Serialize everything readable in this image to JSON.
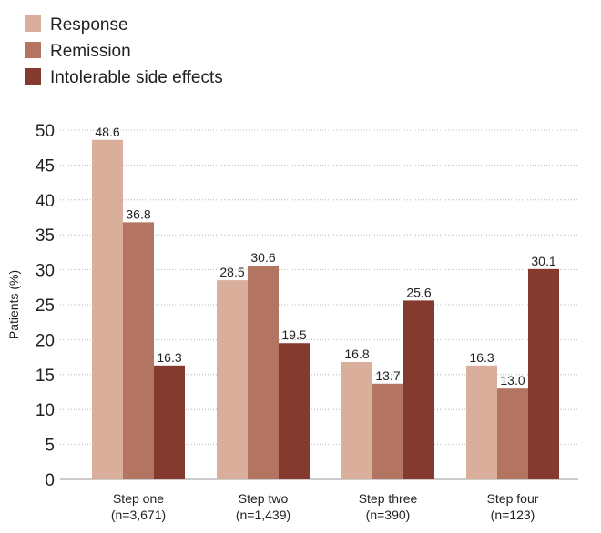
{
  "chart_data": {
    "type": "bar",
    "title": "",
    "xlabel": "",
    "ylabel": "Patients (%)",
    "ylim": [
      0,
      50
    ],
    "yticks": [
      0,
      5,
      10,
      15,
      20,
      25,
      30,
      35,
      40,
      45,
      50
    ],
    "grid": true,
    "legend_position": "top-left",
    "categories": [
      {
        "line1": "Step one",
        "line2": "(n=3,671)"
      },
      {
        "line1": "Step two",
        "line2": "(n=1,439)"
      },
      {
        "line1": "Step three",
        "line2": "(n=390)"
      },
      {
        "line1": "Step four",
        "line2": "(n=123)"
      }
    ],
    "series": [
      {
        "name": "Response",
        "color": "#d9ae9b",
        "values": [
          48.6,
          28.5,
          16.8,
          16.3
        ],
        "labels": [
          "48.6",
          "28.5",
          "16.8",
          "16.3"
        ]
      },
      {
        "name": "Remission",
        "color": "#b37562",
        "values": [
          36.8,
          30.6,
          13.7,
          13.0
        ],
        "labels": [
          "36.8",
          "30.6",
          "13.7",
          "13.0"
        ]
      },
      {
        "name": "Intolerable side effects",
        "color": "#853a30",
        "values": [
          16.3,
          19.5,
          25.6,
          30.1
        ],
        "labels": [
          "16.3",
          "19.5",
          "25.6",
          "30.1"
        ]
      }
    ]
  }
}
